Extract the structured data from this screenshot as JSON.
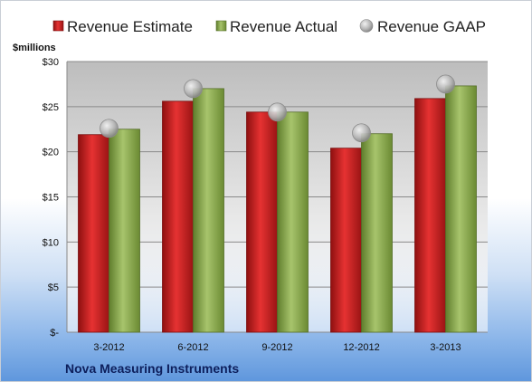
{
  "chart_data": {
    "type": "bar",
    "unit_label": "$millions",
    "categories": [
      "3-2012",
      "6-2012",
      "9-2012",
      "12-2012",
      "3-2013"
    ],
    "series": [
      {
        "name": "Revenue Estimate",
        "kind": "bar",
        "color": "#d42a2a",
        "values": [
          21.9,
          25.6,
          24.4,
          20.4,
          25.9
        ]
      },
      {
        "name": "Revenue Actual",
        "kind": "bar",
        "color": "#93b35a",
        "values": [
          22.5,
          27.0,
          24.4,
          22.0,
          27.3
        ]
      },
      {
        "name": "Revenue GAAP",
        "kind": "marker",
        "color": "#b9b9b9",
        "values": [
          22.6,
          27.0,
          24.4,
          22.1,
          27.5
        ]
      }
    ],
    "ylim": [
      0,
      30
    ],
    "yticks": [
      0,
      5,
      10,
      15,
      20,
      25,
      30
    ],
    "ytick_labels": [
      "$-",
      "$5",
      "$10",
      "$15",
      "$20",
      "$25",
      "$30"
    ],
    "grid": true,
    "legend_position": "top"
  },
  "footer": {
    "company": "Nova Measuring Instruments"
  }
}
